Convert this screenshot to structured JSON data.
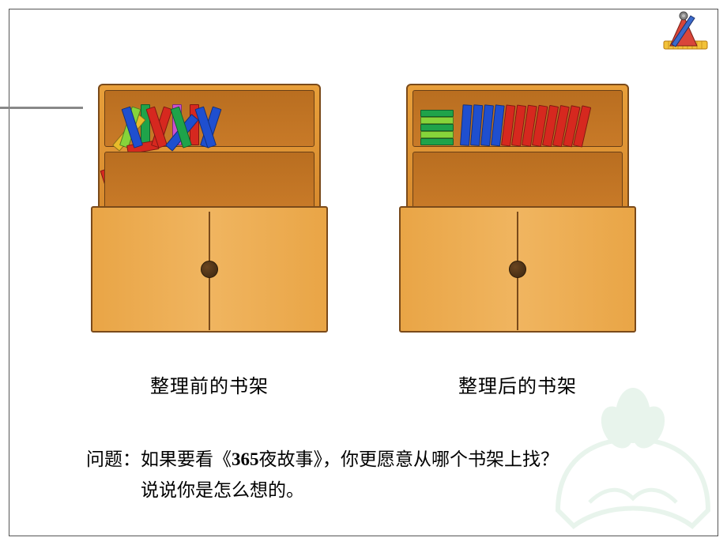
{
  "labels": {
    "before": "整理前的书架",
    "after": "整理后的书架"
  },
  "question": {
    "prefix": "问题：",
    "line1a": "如果要看《",
    "line1bold": "365",
    "line1b": "夜故事》，你更愿意从哪个书架上找？",
    "line2": "说说你是怎么想的。"
  },
  "colors": {
    "red": "#d6281f",
    "blue": "#1f4fcf",
    "green": "#1fa34a",
    "magenta": "#cc4fcf",
    "violet": "#7a3fdc",
    "cyan": "#2aa9c9",
    "lime": "#86d43a",
    "purple": "#6a2fb0",
    "pink": "#e66ad8",
    "yellow": "#e8bb2a",
    "orange": "#e87d1f"
  },
  "shelves": {
    "messy": {
      "row1": [
        {
          "c": "yellow",
          "cls": "t lean-rr"
        },
        {
          "c": "lime",
          "cls": "t lean-r"
        },
        {
          "c": "red",
          "cls": "t fall"
        },
        {
          "c": "blue",
          "cls": "t lean-l"
        },
        {
          "c": "green",
          "cls": "v"
        },
        {
          "c": "red",
          "cls": "t lean-r"
        },
        {
          "c": "red",
          "cls": "t lean-l"
        },
        {
          "c": "blue",
          "cls": "t lean-rr"
        },
        {
          "c": "magenta",
          "cls": "v"
        },
        {
          "c": "green",
          "cls": "t lean-l"
        },
        {
          "c": "red",
          "cls": "v"
        },
        {
          "c": "blue",
          "cls": "t lean-r"
        },
        {
          "c": "blue",
          "cls": "t lean-l"
        }
      ],
      "row2": [
        {
          "c": "red",
          "cls": "t lean-l"
        },
        {
          "c": "magenta",
          "cls": "t lean-rr"
        },
        {
          "c": "violet",
          "cls": "t fall"
        },
        {
          "c": "magenta",
          "cls": "v"
        },
        {
          "c": "pink",
          "cls": "t lean-r"
        },
        {
          "c": "magenta",
          "cls": "t lean-l"
        },
        {
          "c": "green",
          "cls": "v"
        },
        {
          "c": "magenta",
          "cls": "t lean-r"
        },
        {
          "c": "pink",
          "cls": "t lean-rr"
        },
        {
          "c": "violet",
          "cls": "v"
        },
        {
          "c": "magenta",
          "cls": "t lean-l"
        },
        {
          "c": "pink",
          "cls": "t lean-r"
        },
        {
          "c": "magenta",
          "cls": "v"
        }
      ]
    },
    "tidy": {
      "row1_stack": [
        "green",
        "lime",
        "green",
        "lime",
        "green"
      ],
      "row1_books": [
        {
          "c": "blue"
        },
        {
          "c": "blue"
        },
        {
          "c": "blue"
        },
        {
          "c": "blue"
        },
        {
          "c": "red"
        },
        {
          "c": "red"
        },
        {
          "c": "red"
        },
        {
          "c": "red"
        },
        {
          "c": "red"
        },
        {
          "c": "red"
        },
        {
          "c": "red"
        },
        {
          "c": "red"
        }
      ],
      "row2_books": [
        {
          "c": "cyan"
        },
        {
          "c": "blue"
        },
        {
          "c": "violet"
        },
        {
          "c": "purple"
        },
        {
          "c": "magenta"
        },
        {
          "c": "pink"
        },
        {
          "c": "cyan"
        },
        {
          "c": "blue"
        },
        {
          "c": "violet"
        },
        {
          "c": "green"
        },
        {
          "c": "purple"
        },
        {
          "c": "magenta"
        },
        {
          "c": "cyan"
        },
        {
          "c": "blue"
        },
        {
          "c": "pink"
        },
        {
          "c": "violet"
        },
        {
          "c": "red"
        },
        {
          "c": "purple"
        },
        {
          "c": "magenta"
        }
      ]
    }
  }
}
